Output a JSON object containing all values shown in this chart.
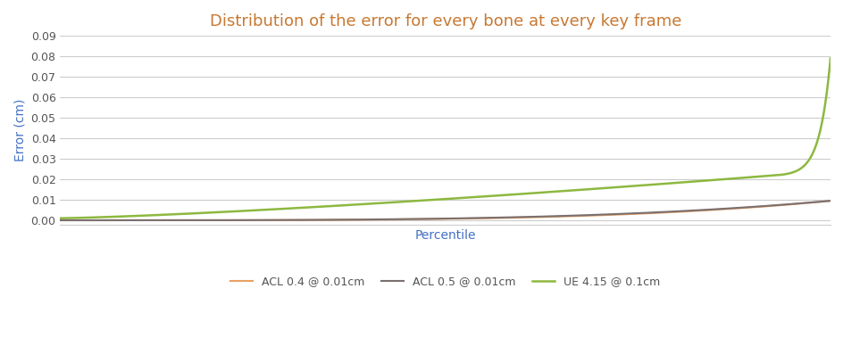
{
  "title": "Distribution of the error for every bone at every key frame",
  "xlabel": "Percentile",
  "ylabel": "Error (cm)",
  "ylim": [
    -0.002,
    0.09
  ],
  "yticks": [
    0,
    0.01,
    0.02,
    0.03,
    0.04,
    0.05,
    0.06,
    0.07,
    0.08,
    0.09
  ],
  "background_color": "#ffffff",
  "grid_color": "#cccccc",
  "title_color": "#C87832",
  "axis_label_color": "#4472C4",
  "lines": [
    {
      "label": "ACL 0.4 @ 0.01cm",
      "color": "#E8A060",
      "linewidth": 1.5
    },
    {
      "label": "ACL 0.5 @ 0.01cm",
      "color": "#7B7070",
      "linewidth": 1.5
    },
    {
      "label": "UE 4.15 @ 0.1cm",
      "color": "#8DB840",
      "linewidth": 1.8
    }
  ],
  "legend_colors": [
    "#E8A060",
    "#7B7070",
    "#8DB840"
  ]
}
